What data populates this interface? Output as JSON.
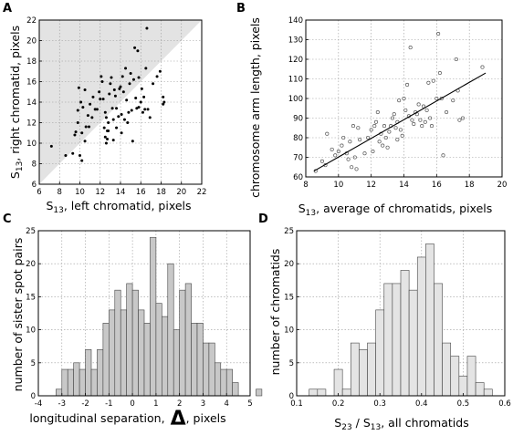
{
  "chart_data": [
    {
      "id": "A",
      "panel_label": "A",
      "type": "scatter",
      "xlabel": "S13, left chromatid, pixels",
      "xlabel_main": "S",
      "xlabel_sub": "13",
      "xlabel_rest": ", left chromatid, pixels",
      "ylabel": "S13, right chromatid, pixels",
      "ylabel_main": "S",
      "ylabel_sub": "13",
      "ylabel_rest": ", right chromatid, pixels",
      "xlim": [
        6,
        22
      ],
      "ylim": [
        6,
        22
      ],
      "xticks": [
        6,
        8,
        10,
        12,
        14,
        16,
        18,
        20,
        22
      ],
      "yticks": [
        6,
        8,
        10,
        12,
        14,
        16,
        18,
        20,
        22
      ],
      "grid": true,
      "shaded_region": "above y = x",
      "marker": "filled dot",
      "points": [
        [
          7.2,
          9.7
        ],
        [
          8.6,
          8.8
        ],
        [
          9.3,
          9.0
        ],
        [
          9.5,
          10.8
        ],
        [
          9.6,
          11.1
        ],
        [
          9.8,
          13.2
        ],
        [
          9.9,
          15.4
        ],
        [
          9.8,
          12.0
        ],
        [
          10.0,
          8.8
        ],
        [
          10.2,
          8.3
        ],
        [
          10.1,
          14.0
        ],
        [
          10.3,
          13.5
        ],
        [
          10.5,
          15.2
        ],
        [
          10.6,
          11.6
        ],
        [
          10.2,
          11.0
        ],
        [
          10.5,
          10.2
        ],
        [
          10.8,
          12.7
        ],
        [
          11.0,
          13.8
        ],
        [
          10.9,
          11.6
        ],
        [
          11.2,
          12.5
        ],
        [
          11.5,
          13.3
        ],
        [
          11.7,
          13.3
        ],
        [
          12.0,
          14.3
        ],
        [
          12.1,
          16.5
        ],
        [
          12.2,
          16.0
        ],
        [
          12.3,
          14.3
        ],
        [
          12.4,
          11.5
        ],
        [
          12.5,
          13.0
        ],
        [
          12.6,
          12.5
        ],
        [
          12.5,
          10.6
        ],
        [
          12.6,
          10.0
        ],
        [
          12.7,
          10.4
        ],
        [
          12.8,
          11.2
        ],
        [
          12.9,
          14.8
        ],
        [
          13.0,
          15.8
        ],
        [
          13.1,
          16.4
        ],
        [
          13.2,
          13.4
        ],
        [
          13.3,
          12.3
        ],
        [
          13.4,
          15.2
        ],
        [
          13.5,
          14.6
        ],
        [
          13.6,
          13.4
        ],
        [
          13.6,
          11.5
        ],
        [
          13.8,
          12.6
        ],
        [
          13.9,
          15.3
        ],
        [
          14.0,
          15.5
        ],
        [
          14.1,
          12.8
        ],
        [
          14.1,
          11.0
        ],
        [
          14.2,
          16.5
        ],
        [
          14.3,
          15.0
        ],
        [
          14.4,
          12.3
        ],
        [
          14.6,
          14.2
        ],
        [
          14.7,
          12.0
        ],
        [
          14.8,
          13.0
        ],
        [
          14.9,
          15.8
        ],
        [
          15.0,
          16.8
        ],
        [
          15.1,
          13.2
        ],
        [
          15.2,
          10.2
        ],
        [
          15.3,
          16.2
        ],
        [
          15.4,
          19.3
        ],
        [
          15.5,
          14.4
        ],
        [
          15.6,
          13.4
        ],
        [
          15.7,
          19.0
        ],
        [
          15.8,
          16.4
        ],
        [
          15.8,
          13.5
        ],
        [
          16.0,
          14.0
        ],
        [
          16.1,
          15.3
        ],
        [
          16.2,
          13.0
        ],
        [
          16.3,
          14.5
        ],
        [
          16.4,
          13.3
        ],
        [
          16.5,
          17.3
        ],
        [
          16.6,
          21.2
        ],
        [
          16.7,
          13.3
        ],
        [
          16.9,
          12.5
        ],
        [
          17.2,
          15.8
        ],
        [
          17.6,
          16.5
        ],
        [
          17.9,
          17.0
        ],
        [
          18.2,
          14.5
        ],
        [
          18.3,
          14.0
        ],
        [
          18.2,
          13.8
        ],
        [
          12.7,
          11.2
        ],
        [
          11.3,
          14.5
        ],
        [
          11.9,
          15.0
        ],
        [
          12.8,
          12.0
        ],
        [
          14.5,
          17.3
        ],
        [
          13.3,
          10.3
        ]
      ]
    },
    {
      "id": "B",
      "panel_label": "B",
      "type": "scatter",
      "xlabel": "S13, average of chromatids,  pixels",
      "xlabel_main": "S",
      "xlabel_sub": "13",
      "xlabel_rest": ", average of chromatids,  pixels",
      "ylabel": "chromosome arm length, pixels",
      "xlim": [
        8,
        20
      ],
      "ylim": [
        60,
        140
      ],
      "xticks": [
        8,
        10,
        12,
        14,
        16,
        18,
        20
      ],
      "yticks": [
        60,
        70,
        80,
        90,
        100,
        110,
        120,
        130,
        140
      ],
      "grid": true,
      "marker": "open circle",
      "fit_line": [
        [
          8.5,
          63
        ],
        [
          19.0,
          113
        ]
      ],
      "points": [
        [
          8.6,
          63
        ],
        [
          9.0,
          68
        ],
        [
          9.2,
          66
        ],
        [
          9.3,
          82
        ],
        [
          9.6,
          74
        ],
        [
          9.8,
          71
        ],
        [
          10.0,
          73
        ],
        [
          10.2,
          76
        ],
        [
          10.3,
          80
        ],
        [
          10.5,
          72
        ],
        [
          10.6,
          69
        ],
        [
          10.8,
          65
        ],
        [
          10.9,
          86
        ],
        [
          11.0,
          70
        ],
        [
          11.1,
          64
        ],
        [
          11.2,
          85
        ],
        [
          11.3,
          79
        ],
        [
          11.6,
          72
        ],
        [
          11.8,
          80
        ],
        [
          12.0,
          84
        ],
        [
          12.1,
          73
        ],
        [
          12.3,
          88
        ],
        [
          12.4,
          93
        ],
        [
          12.5,
          78
        ],
        [
          12.6,
          82
        ],
        [
          12.7,
          76
        ],
        [
          12.8,
          86
        ],
        [
          12.9,
          80
        ],
        [
          13.0,
          75
        ],
        [
          13.1,
          83
        ],
        [
          13.2,
          86
        ],
        [
          13.3,
          90
        ],
        [
          13.4,
          92
        ],
        [
          13.5,
          85
        ],
        [
          13.6,
          88
        ],
        [
          13.7,
          99
        ],
        [
          13.8,
          84
        ],
        [
          13.9,
          81
        ],
        [
          14.0,
          100
        ],
        [
          14.1,
          94
        ],
        [
          14.2,
          107
        ],
        [
          14.3,
          91
        ],
        [
          14.4,
          126
        ],
        [
          14.5,
          89
        ],
        [
          14.6,
          87
        ],
        [
          14.7,
          93
        ],
        [
          14.8,
          92
        ],
        [
          14.9,
          97
        ],
        [
          15.0,
          89
        ],
        [
          15.1,
          86
        ],
        [
          15.2,
          96
        ],
        [
          15.3,
          88
        ],
        [
          15.4,
          94
        ],
        [
          15.5,
          108
        ],
        [
          15.6,
          90
        ],
        [
          15.7,
          86
        ],
        [
          15.8,
          109
        ],
        [
          16.0,
          100
        ],
        [
          16.1,
          133
        ],
        [
          16.2,
          113
        ],
        [
          16.3,
          100
        ],
        [
          16.4,
          71
        ],
        [
          16.6,
          93
        ],
        [
          17.0,
          99
        ],
        [
          17.2,
          120
        ],
        [
          17.3,
          104
        ],
        [
          17.4,
          89
        ],
        [
          17.6,
          90
        ],
        [
          18.8,
          116
        ],
        [
          10.7,
          78
        ],
        [
          12.2,
          86
        ],
        [
          13.6,
          79
        ]
      ]
    },
    {
      "id": "C",
      "panel_label": "C",
      "type": "bar",
      "xlabel": "longitudinal separation, Δ, pixels",
      "xlabel_before": "longitudinal separation,",
      "xlabel_symbol": "Δ",
      "xlabel_after": ", pixels",
      "ylabel": "number of sister spot pairs",
      "xlim": [
        -4,
        5
      ],
      "ylim": [
        0,
        25
      ],
      "xticks": [
        -4,
        -3,
        -2,
        -1,
        0,
        1,
        2,
        3,
        4,
        5
      ],
      "yticks": [
        0,
        5,
        10,
        15,
        20,
        25
      ],
      "grid": true,
      "bin_width": 0.25,
      "bin_start": -3.25,
      "values": [
        1,
        4,
        4,
        5,
        4,
        7,
        4,
        7,
        11,
        13,
        16,
        13,
        17,
        16,
        13,
        11,
        24,
        14,
        12,
        20,
        10,
        16,
        17,
        11,
        11,
        8,
        8,
        5,
        4,
        4,
        2,
        0,
        0,
        0,
        1
      ]
    },
    {
      "id": "D",
      "panel_label": "D",
      "type": "bar",
      "xlabel": "S23 / S13,   all chromatids",
      "xlabel_s1": "S",
      "xlabel_sub1": "23",
      "xlabel_mid": " / S",
      "xlabel_sub2": "13",
      "xlabel_rest": ",   all chromatids",
      "ylabel": "number of chromatids",
      "xlim": [
        0.1,
        0.6
      ],
      "ylim": [
        0,
        25
      ],
      "xticks": [
        0.1,
        0.2,
        0.3,
        0.4,
        0.5,
        0.6
      ],
      "yticks": [
        0,
        5,
        10,
        15,
        20,
        25
      ],
      "grid": true,
      "bin_width": 0.02,
      "bin_start": 0.13,
      "values": [
        1,
        1,
        0,
        4,
        1,
        8,
        7,
        8,
        13,
        17,
        17,
        19,
        16,
        21,
        23,
        17,
        8,
        6,
        3,
        6,
        2,
        1
      ]
    }
  ]
}
